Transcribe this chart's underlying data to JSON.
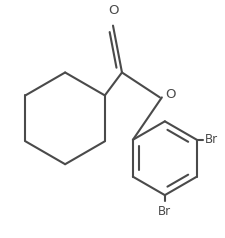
{
  "line_color": "#4a4a4a",
  "bg_color": "#ffffff",
  "lw": 1.5,
  "figsize": [
    2.25,
    2.38
  ],
  "dpi": 100,
  "font_size": 8.5,
  "O_label": "O",
  "Br_label": "Br"
}
